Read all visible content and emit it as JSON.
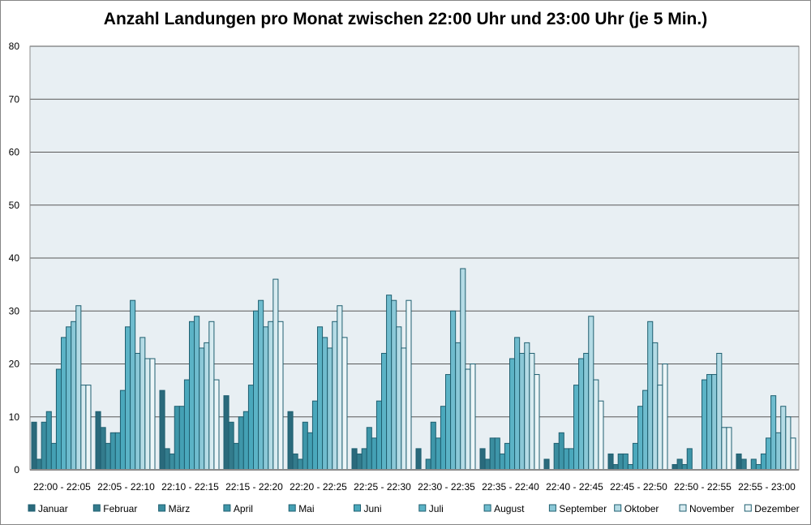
{
  "chart_data": {
    "type": "bar",
    "title": "Anzahl Landungen pro Monat zwischen 22:00 Uhr und 23:00 Uhr (je 5 Min.)",
    "xlabel": "",
    "ylabel": "",
    "ylim": [
      0,
      80
    ],
    "yticks": [
      0,
      10,
      20,
      30,
      40,
      50,
      60,
      70,
      80
    ],
    "grid": true,
    "legend_position": "bottom",
    "categories": [
      "22:00 - 22:05",
      "22:05 - 22:10",
      "22:10 - 22:15",
      "22:15 - 22:20",
      "22:20 - 22:25",
      "22:25 - 22:30",
      "22:30 - 22:35",
      "22:35 - 22:40",
      "22:40 - 22:45",
      "22:45 - 22:50",
      "22:50 - 22:55",
      "22:55 - 23:00"
    ],
    "series": [
      {
        "name": "Januar",
        "color": "#2a6a7c",
        "values": [
          9,
          11,
          15,
          14,
          11,
          4,
          4,
          4,
          2,
          3,
          1,
          3
        ]
      },
      {
        "name": "Februar",
        "color": "#337b8c",
        "values": [
          2,
          8,
          4,
          9,
          3,
          3,
          0,
          2,
          0,
          1,
          2,
          2
        ]
      },
      {
        "name": "März",
        "color": "#3a8d9f",
        "values": [
          9,
          5,
          3,
          5,
          2,
          4,
          2,
          6,
          5,
          3,
          1,
          0
        ]
      },
      {
        "name": "April",
        "color": "#3e96a9",
        "values": [
          11,
          7,
          12,
          10,
          9,
          8,
          9,
          6,
          7,
          3,
          4,
          2
        ]
      },
      {
        "name": "Mai",
        "color": "#44a0b4",
        "values": [
          5,
          7,
          12,
          11,
          7,
          6,
          6,
          3,
          4,
          1,
          0,
          1
        ]
      },
      {
        "name": "Juni",
        "color": "#4aa8bc",
        "values": [
          19,
          15,
          17,
          16,
          13,
          13,
          12,
          5,
          4,
          5,
          0,
          3
        ]
      },
      {
        "name": "Juli",
        "color": "#5bb3c6",
        "values": [
          25,
          27,
          28,
          30,
          27,
          22,
          18,
          21,
          16,
          12,
          17,
          6
        ]
      },
      {
        "name": "August",
        "color": "#6fbcce",
        "values": [
          27,
          32,
          29,
          32,
          25,
          33,
          30,
          25,
          21,
          15,
          18,
          14
        ]
      },
      {
        "name": "September",
        "color": "#8bc8d7",
        "values": [
          28,
          22,
          23,
          27,
          23,
          32,
          24,
          22,
          22,
          28,
          18,
          7
        ]
      },
      {
        "name": "Oktober",
        "color": "#b4dbe5",
        "values": [
          31,
          25,
          24,
          28,
          28,
          27,
          38,
          24,
          29,
          24,
          22,
          12
        ]
      },
      {
        "name": "November",
        "color": "#d7ebf0",
        "values": [
          16,
          21,
          28,
          36,
          31,
          23,
          19,
          22,
          17,
          16,
          8,
          10
        ]
      },
      {
        "name": "Dezember",
        "color": "#edf6f8",
        "values": [
          16,
          21,
          17,
          28,
          25,
          32,
          20,
          18,
          13,
          20,
          8,
          6
        ]
      }
    ],
    "bar_outline_color": "#1f5f70",
    "plot_background": "#e8eff3",
    "gridline_color": "#595959"
  }
}
